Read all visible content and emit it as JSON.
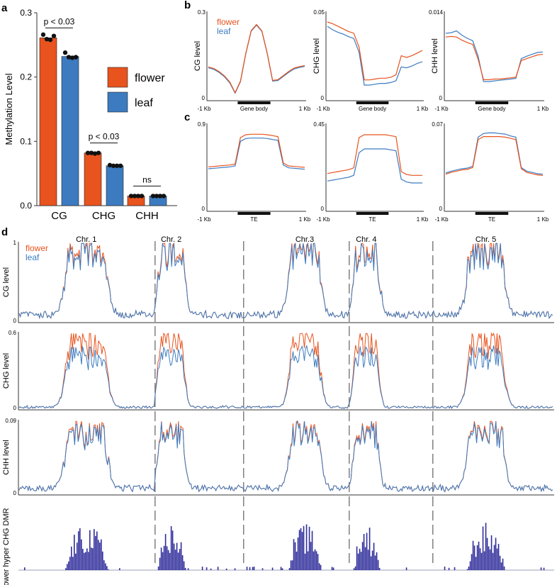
{
  "colors": {
    "flower": "#E8531E",
    "leaf": "#3C7BC0",
    "dmr": "#2E2C9A",
    "axis": "#333333",
    "sep": "#808080"
  },
  "chart_data": {
    "panel_a": {
      "type": "bar",
      "panel_label": "a",
      "ylabel": "Methylation Level",
      "ylim": [
        0,
        0.3
      ],
      "yticks": [
        "0.0",
        "0.1",
        "0.2",
        "0.3"
      ],
      "categories": [
        "CG",
        "CHG",
        "CHH"
      ],
      "series": [
        {
          "name": "flower",
          "values": [
            0.261,
            0.082,
            0.015
          ]
        },
        {
          "name": "leaf",
          "values": [
            0.232,
            0.062,
            0.015
          ]
        }
      ],
      "replicates": {
        "flower": [
          [
            0.266,
            0.259,
            0.258,
            0.264
          ],
          [
            0.082,
            0.082,
            0.081,
            0.082
          ],
          [
            0.015,
            0.015,
            0.015,
            0.015
          ]
        ],
        "leaf": [
          [
            0.238,
            0.231,
            0.23,
            0.231
          ],
          [
            0.063,
            0.062,
            0.062,
            0.062
          ],
          [
            0.015,
            0.015,
            0.015,
            0.015
          ]
        ]
      },
      "annotations": [
        "p < 0.03",
        "p < 0.03",
        "ns"
      ],
      "legend": [
        "flower",
        "leaf"
      ]
    },
    "panel_b": {
      "type": "line",
      "panel_label": "b",
      "legend": [
        "flower",
        "leaf"
      ],
      "x_labels": [
        "-1 Kb",
        "Gene body",
        "1 Kb"
      ],
      "plots": [
        {
          "ylabel": "CG level",
          "ylim": [
            0,
            0.3
          ],
          "top_tick": "0.3",
          "bottom_tick": "0",
          "flower": [
            0.117,
            0.112,
            0.101,
            0.086,
            0.065,
            0.028,
            0.068,
            0.165,
            0.243,
            0.264,
            0.242,
            0.165,
            0.07,
            0.073,
            0.087,
            0.101,
            0.113,
            0.118,
            0.122
          ],
          "leaf": [
            0.114,
            0.109,
            0.098,
            0.083,
            0.062,
            0.026,
            0.066,
            0.163,
            0.241,
            0.262,
            0.24,
            0.163,
            0.068,
            0.07,
            0.084,
            0.098,
            0.11,
            0.115,
            0.119
          ]
        },
        {
          "ylabel": "CHG level",
          "ylim": [
            0,
            0.05
          ],
          "top_tick": "0.05",
          "bottom_tick": "0",
          "flower": [
            0.0455,
            0.0445,
            0.043,
            0.0415,
            0.04,
            0.039,
            0.031,
            0.012,
            0.012,
            0.0125,
            0.013,
            0.013,
            0.0135,
            0.015,
            0.026,
            0.025,
            0.026,
            0.0275,
            0.029
          ],
          "leaf": [
            0.043,
            0.041,
            0.0395,
            0.0385,
            0.037,
            0.036,
            0.028,
            0.009,
            0.009,
            0.0095,
            0.01,
            0.01,
            0.0105,
            0.0115,
            0.0195,
            0.019,
            0.02,
            0.0215,
            0.0225
          ]
        },
        {
          "ylabel": "CHH level",
          "ylim": [
            0,
            0.014
          ],
          "top_tick": "0.014",
          "bottom_tick": "0",
          "flower": [
            0.0103,
            0.0104,
            0.0103,
            0.0098,
            0.0094,
            0.0091,
            0.0067,
            0.0034,
            0.0034,
            0.0035,
            0.0035,
            0.0036,
            0.0037,
            0.0038,
            0.0065,
            0.0068,
            0.0071,
            0.0074,
            0.0075
          ],
          "leaf": [
            0.0109,
            0.011,
            0.0113,
            0.0106,
            0.0101,
            0.0097,
            0.0072,
            0.0031,
            0.0031,
            0.0032,
            0.0033,
            0.0034,
            0.0035,
            0.0036,
            0.0068,
            0.0072,
            0.0075,
            0.0078,
            0.0079
          ]
        }
      ]
    },
    "panel_c": {
      "type": "line",
      "panel_label": "c",
      "x_labels": [
        "-1 Kb",
        "TE",
        "1 Kb"
      ],
      "plots": [
        {
          "ylim": [
            0,
            0.9
          ],
          "top_tick": "0.9",
          "bottom_tick": "0",
          "flower": [
            0.47,
            0.475,
            0.48,
            0.485,
            0.49,
            0.5,
            0.78,
            0.81,
            0.815,
            0.815,
            0.815,
            0.81,
            0.8,
            0.79,
            0.51,
            0.48,
            0.475,
            0.47,
            0.465
          ],
          "leaf": [
            0.45,
            0.455,
            0.46,
            0.465,
            0.47,
            0.48,
            0.74,
            0.77,
            0.775,
            0.775,
            0.775,
            0.77,
            0.76,
            0.75,
            0.49,
            0.46,
            0.455,
            0.45,
            0.445
          ]
        },
        {
          "ylim": [
            0,
            0.45
          ],
          "top_tick": "0.45",
          "bottom_tick": "0",
          "flower": [
            0.2,
            0.205,
            0.21,
            0.215,
            0.22,
            0.23,
            0.39,
            0.405,
            0.405,
            0.405,
            0.405,
            0.405,
            0.4,
            0.395,
            0.21,
            0.195,
            0.19,
            0.19,
            0.19
          ],
          "leaf": [
            0.16,
            0.165,
            0.17,
            0.175,
            0.18,
            0.19,
            0.31,
            0.33,
            0.33,
            0.33,
            0.33,
            0.33,
            0.325,
            0.32,
            0.17,
            0.155,
            0.15,
            0.15,
            0.15
          ]
        },
        {
          "ylim": [
            0,
            0.07
          ],
          "top_tick": "0.07",
          "bottom_tick": "0",
          "flower": [
            0.0305,
            0.032,
            0.033,
            0.034,
            0.0345,
            0.036,
            0.059,
            0.0615,
            0.0615,
            0.0615,
            0.0615,
            0.061,
            0.06,
            0.059,
            0.035,
            0.032,
            0.031,
            0.03,
            0.0295
          ],
          "leaf": [
            0.0315,
            0.033,
            0.034,
            0.035,
            0.0355,
            0.037,
            0.061,
            0.064,
            0.0645,
            0.0645,
            0.064,
            0.0635,
            0.062,
            0.061,
            0.036,
            0.033,
            0.032,
            0.031,
            0.0305
          ]
        }
      ]
    },
    "panel_d": {
      "type": "line",
      "panel_label": "d",
      "legend": [
        "flower",
        "leaf"
      ],
      "chromosomes": [
        "Chr. 1",
        "Chr. 2",
        "Chr.3",
        "Chr. 4",
        "Chr. 5"
      ],
      "chromosome_lengths_mb": [
        30.4,
        19.7,
        23.5,
        18.6,
        27.0
      ],
      "centromere_positions_mb": [
        15.1,
        3.6,
        13.6,
        3.8,
        11.8
      ],
      "rows": [
        {
          "ylabel": "CG level",
          "top_tick": "1",
          "bottom_tick": "0",
          "ylim": [
            0,
            1
          ],
          "background": 0.1,
          "peak": {
            "flower": 0.88,
            "leaf": 0.84
          }
        },
        {
          "ylabel": "CHG level",
          "top_tick": "0.6",
          "bottom_tick": "0",
          "ylim": [
            0,
            0.6
          ],
          "background": 0.02,
          "peak": {
            "flower": 0.5,
            "leaf": 0.4
          }
        },
        {
          "ylabel": "CHH level",
          "top_tick": "0.09",
          "bottom_tick": "0",
          "ylim": [
            0,
            0.09
          ],
          "background": 0.008,
          "peak": {
            "flower": 0.075,
            "leaf": 0.073
          }
        },
        {
          "ylabel": "Flower hyper CHG DMR",
          "type": "histogram",
          "peak_relative": 1.0
        }
      ]
    }
  }
}
